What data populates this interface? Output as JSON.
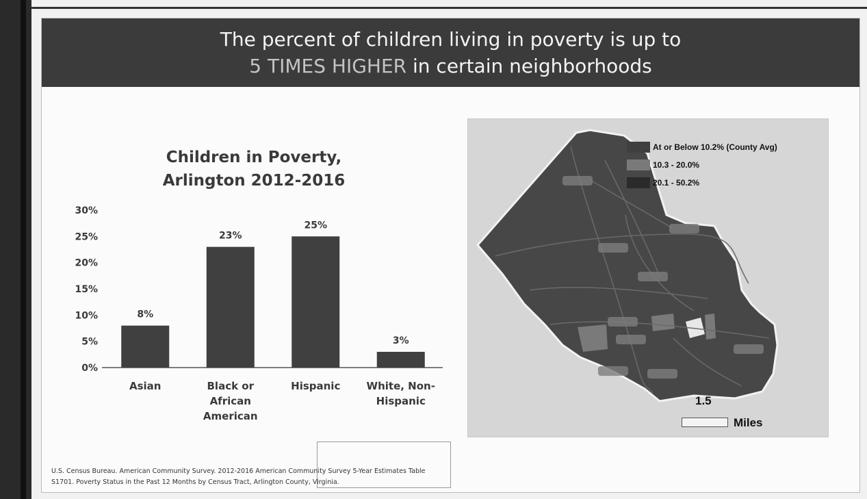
{
  "slide": {
    "heading_line1": "The percent of children living in poverty is up to",
    "heading_line2_emphasis": "5 TIMES HIGHER",
    "heading_line2_rest": " in certain neighborhoods",
    "source_line1": "U.S. Census Bureau.  American Community Survey. 2012-2016 American Community Survey 5-Year Estimates Table",
    "source_line2": "S1701.  Poverty Status in the Past 12 Months by Census Tract, Arlington County, Virginia."
  },
  "chart_data": {
    "type": "bar",
    "title_line1": "Children in Poverty,",
    "title_line2": "Arlington 2012-2016",
    "categories": [
      [
        "Asian"
      ],
      [
        "Black or",
        "African",
        "American"
      ],
      [
        "Hispanic"
      ],
      [
        "White, Non-",
        "Hispanic"
      ]
    ],
    "values": [
      8,
      23,
      25,
      3
    ],
    "data_labels": [
      "8%",
      "23%",
      "25%",
      "3%"
    ],
    "y_ticks": [
      0,
      5,
      10,
      15,
      20,
      25,
      30
    ],
    "y_tick_labels": [
      "0%",
      "5%",
      "10%",
      "15%",
      "20%",
      "25%",
      "30%"
    ],
    "ylim": [
      0,
      30
    ],
    "grid": false,
    "bar_color": "#404040"
  },
  "map": {
    "legend": [
      {
        "label": "At or Below 10.2% (County Avg)",
        "color": "#3f3f3f"
      },
      {
        "label": "10.3 - 20.0%",
        "color": "#7a7a7a"
      },
      {
        "label": "20.1 - 50.2%",
        "color": "#2b2b2b"
      }
    ],
    "scale_value": "1.5",
    "scale_units": "Miles",
    "base_color": "#474747",
    "road_color": "#6a6a6a"
  }
}
